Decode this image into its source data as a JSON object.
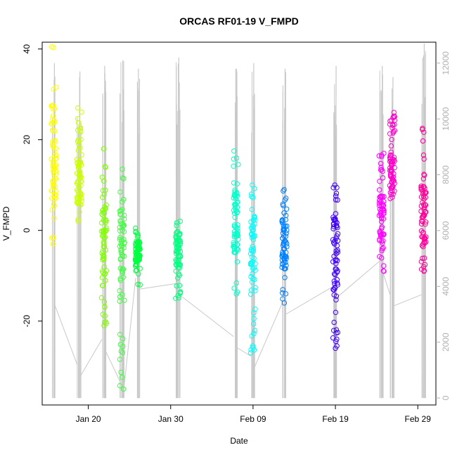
{
  "chart_data": {
    "type": "scatter",
    "title": "ORCAS RF01-19 V_FMPD",
    "xlabel": "Date",
    "ylabel": "V_FMPD",
    "y2label": "",
    "x_ticks": [
      "Jan 20",
      "Jan 30",
      "Feb 09",
      "Feb 19",
      "Feb 29"
    ],
    "x_tick_days": [
      20,
      30,
      40,
      50,
      60
    ],
    "xlim_days": [
      14.4,
      62.2
    ],
    "y_ticks": [
      "-20",
      "0",
      "20",
      "40"
    ],
    "y_tick_values": [
      -20,
      0,
      20,
      40
    ],
    "ylim": [
      -38.5,
      41.5
    ],
    "y2_ticks": [
      "0",
      "2000",
      "4000",
      "6000",
      "8000",
      "10000",
      "12000"
    ],
    "y2_tick_values": [
      0,
      2000,
      4000,
      6000,
      8000,
      10000,
      12000
    ],
    "y2lim": [
      -250,
      12750
    ],
    "colors": {
      "altitude_trace": "#c8c8c8",
      "axis": "#000000",
      "right_axis": "#b0b0b0"
    },
    "flights": [
      {
        "day": 15.8,
        "color": "#ffff00",
        "ymin": -3,
        "ymax": 40.5,
        "ymean": 15,
        "altmax": 12000,
        "altend": 3300
      },
      {
        "day": 18.9,
        "color": "#ccff00",
        "ymin": 2,
        "ymax": 27,
        "ymean": 11,
        "altmax": 11700,
        "altend": 800
      },
      {
        "day": 21.9,
        "color": "#80ff00",
        "ymin": -21,
        "ymax": 18,
        "ymean": -3,
        "altmax": 11900,
        "altend": 1700
      },
      {
        "day": 24.1,
        "color": "#40ff40",
        "ymin": -35,
        "ymax": 13.5,
        "ymean": -4,
        "altmax": 12100,
        "altend": 200
      },
      {
        "day": 26.0,
        "color": "#00ff40",
        "ymin": -12,
        "ymax": 0.5,
        "ymean": -5,
        "altmax": 11800,
        "altend": 3900
      },
      {
        "day": 30.9,
        "color": "#00ff80",
        "ymin": -15,
        "ymax": 2,
        "ymean": -4,
        "altmax": 12200,
        "altend": 3700
      },
      {
        "day": 37.9,
        "color": "#00ffcc",
        "ymin": -14,
        "ymax": 17.5,
        "ymean": 2,
        "altmax": 11800,
        "altend": 1800
      },
      {
        "day": 40.0,
        "color": "#00ffff",
        "ymin": -27,
        "ymax": 10,
        "ymean": -5,
        "altmax": 12000,
        "altend": 1100
      },
      {
        "day": 43.8,
        "color": "#0080ff",
        "ymin": -16,
        "ymax": 9,
        "ymean": -3,
        "altmax": 11800,
        "altend": 3000
      },
      {
        "day": 50.0,
        "color": "#4000ff",
        "ymin": -26,
        "ymax": 10,
        "ymean": -5,
        "altmax": 11900,
        "altend": 3600
      },
      {
        "day": 55.6,
        "color": "#ff00ff",
        "ymin": -9,
        "ymax": 17,
        "ymean": 2,
        "altmax": 11900,
        "altend": 4500
      },
      {
        "day": 56.9,
        "color": "#ff00cc",
        "ymin": 7,
        "ymax": 26,
        "ymean": 12,
        "altmax": 11500,
        "altend": 3300
      },
      {
        "day": 60.7,
        "color": "#ff0099",
        "ymin": -9,
        "ymax": 22.5,
        "ymean": 3,
        "altmax": 12700,
        "altend": 3300
      }
    ]
  }
}
